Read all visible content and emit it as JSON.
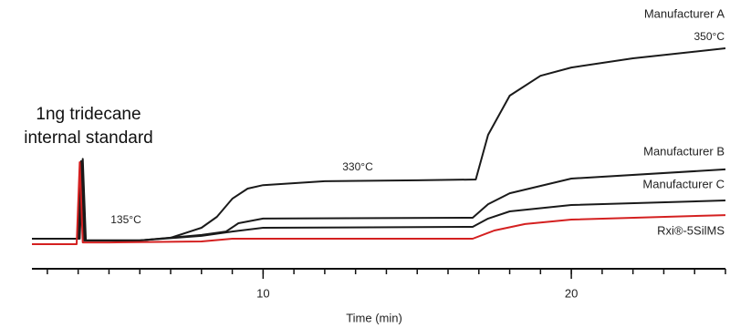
{
  "chart_data": {
    "type": "line",
    "x_label": "Time (min)",
    "xlim": [
      2.5,
      25
    ],
    "xticks": [
      10,
      20
    ],
    "xticks_minor": [
      3,
      4,
      5,
      6,
      7,
      8,
      9,
      10,
      11,
      12,
      13,
      14,
      15,
      16,
      17,
      18,
      19,
      20,
      21,
      22,
      23,
      24,
      25
    ],
    "ylim": [
      0,
      100
    ],
    "annotations": [
      "1ng tridecane",
      "internal standard",
      "135°C",
      "330°C",
      "350°C"
    ],
    "series": [
      {
        "name": "Manufacturer A",
        "color": "#1a1a1a",
        "x": [
          2.5,
          4.05,
          4.15,
          4.25,
          5,
          6,
          7,
          8,
          8.5,
          9,
          9.5,
          10,
          12,
          15,
          16.9,
          17.3,
          18,
          19,
          20,
          22,
          25
        ],
        "values": [
          7.5,
          7.5,
          44,
          6.7,
          6.7,
          6.7,
          7.9,
          12.5,
          17.5,
          25.8,
          30.4,
          32,
          33.8,
          34.2,
          34.6,
          55,
          72.9,
          82,
          85.8,
          90,
          94.6
        ]
      },
      {
        "name": "Manufacturer B",
        "color": "#1a1a1a",
        "x": [
          2.5,
          4.0,
          4.1,
          4.2,
          6,
          8,
          8.8,
          9.2,
          10,
          16.8,
          17.3,
          18,
          20,
          25
        ],
        "values": [
          7.5,
          7.5,
          43,
          6.7,
          6.7,
          9.2,
          10.8,
          14.6,
          16.7,
          17.1,
          23.3,
          28.3,
          35,
          39.2
        ]
      },
      {
        "name": "Manufacturer C",
        "color": "#1a1a1a",
        "x": [
          2.5,
          4.0,
          4.1,
          4.2,
          6,
          8,
          9,
          10,
          16.8,
          17.3,
          18,
          20,
          25
        ],
        "values": [
          7.5,
          7.5,
          42,
          6.7,
          6.7,
          8.8,
          10.8,
          12.5,
          12.9,
          16.7,
          20,
          22.9,
          25
        ]
      },
      {
        "name": "Rxi®-5SilMS",
        "color": "#d42020",
        "x": [
          2.5,
          3.95,
          4.05,
          4.15,
          5,
          8,
          9,
          16.8,
          17.5,
          18.5,
          20,
          25
        ],
        "values": [
          5,
          5,
          42.5,
          5.8,
          5.8,
          6.25,
          7.5,
          7.5,
          11.25,
          14.2,
          16.25,
          18.3
        ]
      }
    ]
  }
}
